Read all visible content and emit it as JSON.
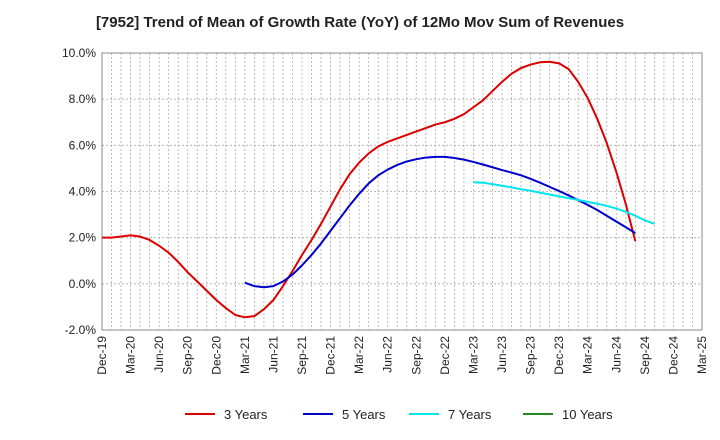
{
  "chart_data": {
    "type": "line",
    "title": "[7952]  Trend of Mean of Growth Rate (YoY) of 12Mo Mov Sum of Revenues",
    "xlabel": "",
    "ylabel": "",
    "ylim": [
      -2.0,
      10.0
    ],
    "y_ticks": [
      -2.0,
      0.0,
      2.0,
      4.0,
      6.0,
      8.0,
      10.0
    ],
    "y_tick_labels": [
      "-2.0%",
      "0.0%",
      "2.0%",
      "4.0%",
      "6.0%",
      "8.0%",
      "10.0%"
    ],
    "x_start": "Dec-19",
    "x_tick_labels": [
      "Dec-19",
      "Mar-20",
      "Jun-20",
      "Sep-20",
      "Dec-20",
      "Mar-21",
      "Jun-21",
      "Sep-21",
      "Dec-21",
      "Mar-22",
      "Jun-22",
      "Sep-22",
      "Dec-22",
      "Mar-23",
      "Jun-23",
      "Sep-23",
      "Dec-23",
      "Mar-24",
      "Jun-24",
      "Sep-24",
      "Dec-24",
      "Mar-25"
    ],
    "grid": true,
    "legend_position": "bottom",
    "series": [
      {
        "name": "3 Years",
        "color": "#dd0000",
        "start_index": 0,
        "values": [
          2.0,
          2.0,
          2.05,
          2.1,
          2.05,
          1.9,
          1.65,
          1.35,
          0.95,
          0.5,
          0.1,
          -0.3,
          -0.7,
          -1.05,
          -1.35,
          -1.45,
          -1.4,
          -1.1,
          -0.7,
          -0.1,
          0.55,
          1.25,
          1.9,
          2.6,
          3.35,
          4.1,
          4.75,
          5.25,
          5.65,
          5.95,
          6.15,
          6.3,
          6.45,
          6.6,
          6.75,
          6.9,
          7.0,
          7.15,
          7.35,
          7.65,
          7.95,
          8.35,
          8.75,
          9.1,
          9.35,
          9.5,
          9.6,
          9.62,
          9.55,
          9.3,
          8.75,
          8.05,
          7.15,
          6.1,
          4.85,
          3.45,
          1.85
        ]
      },
      {
        "name": "5 Years",
        "color": "#0000cc",
        "start_index": 15,
        "values": [
          0.05,
          -0.1,
          -0.15,
          -0.1,
          0.1,
          0.4,
          0.8,
          1.25,
          1.75,
          2.3,
          2.85,
          3.4,
          3.9,
          4.35,
          4.7,
          4.95,
          5.15,
          5.3,
          5.4,
          5.47,
          5.5,
          5.5,
          5.45,
          5.38,
          5.28,
          5.17,
          5.05,
          4.93,
          4.82,
          4.7,
          4.55,
          4.38,
          4.2,
          4.02,
          3.83,
          3.62,
          3.42,
          3.2,
          2.95,
          2.7,
          2.45,
          2.2
        ]
      },
      {
        "name": "7 Years",
        "color": "#00e5ee",
        "start_index": 39,
        "values": [
          4.4,
          4.38,
          4.32,
          4.25,
          4.18,
          4.1,
          4.03,
          3.95,
          3.87,
          3.79,
          3.71,
          3.63,
          3.55,
          3.47,
          3.38,
          3.26,
          3.12,
          2.95,
          2.75,
          2.6
        ]
      },
      {
        "name": "10 Years",
        "color": "#228b22",
        "start_index": 0,
        "values": []
      }
    ]
  }
}
